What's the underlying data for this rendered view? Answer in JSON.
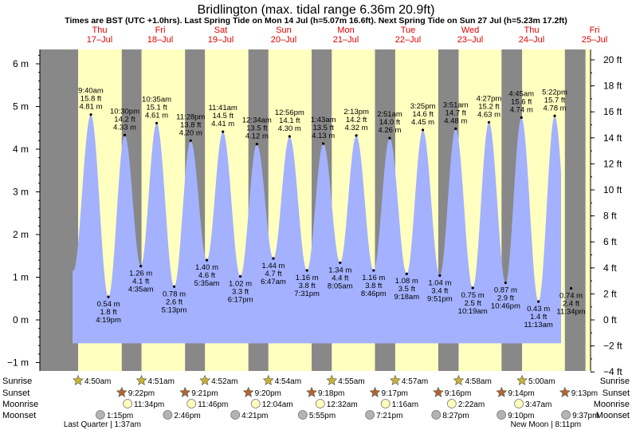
{
  "title": "Bridlington (max. tidal range 6.36m 20.9ft)",
  "subtitle": "Times are BST (UTC +1.0hrs). Last Spring Tide on Mon 14 Jul (h=5.07m 16.6ft). Next Spring Tide on Sun 27 Jul (h=5.23m 17.2ft)",
  "colors": {
    "tide_fill": "#a3b1ff",
    "day_bg": "#ffffc0",
    "night_bg": "#888888",
    "day_label": "#e00000",
    "sun_star": "#c8b432",
    "sunset_star": "#b4642d",
    "moonrise": "#ffffbe",
    "moonset": "#b4b4b4"
  },
  "chart_data": {
    "type": "area",
    "days": [
      {
        "dow": "Thu",
        "date": "17–Jul"
      },
      {
        "dow": "Fri",
        "date": "18–Jul"
      },
      {
        "dow": "Sat",
        "date": "19–Jul"
      },
      {
        "dow": "Sun",
        "date": "20–Jul"
      },
      {
        "dow": "Mon",
        "date": "21–Jul"
      },
      {
        "dow": "Tue",
        "date": "22–Jul"
      },
      {
        "dow": "Wed",
        "date": "23–Jul"
      },
      {
        "dow": "Thu",
        "date": "24–Jul"
      },
      {
        "dow": "Fri",
        "date": "25–Jul"
      }
    ],
    "y_left": {
      "unit": "m",
      "ticks": [
        -1,
        0,
        1,
        2,
        3,
        4,
        5,
        6
      ],
      "tick_labels": [
        "−1 m",
        "0 m",
        "1 m",
        "2 m",
        "3 m",
        "4 m",
        "5 m",
        "6 m"
      ]
    },
    "y_right": {
      "unit": "ft",
      "ticks": [
        -4,
        -2,
        0,
        2,
        4,
        6,
        8,
        10,
        12,
        14,
        16,
        18,
        20
      ],
      "tick_labels": [
        "−4 ft",
        "−2 ft",
        "0 ft",
        "2 ft",
        "4 ft",
        "6 ft",
        "8 ft",
        "10 ft",
        "12 ft",
        "14 ft",
        "16 ft",
        "18 ft",
        "20 ft"
      ]
    },
    "tides": [
      {
        "type": "high",
        "day": 0,
        "time": "9:40 am",
        "ft": "15.8 ft",
        "m": "4.81 m",
        "h": 4.81
      },
      {
        "type": "low",
        "day": 0,
        "time": "4:19 pm",
        "ft": "1.8 ft",
        "m": "0.54 m",
        "h": 0.54
      },
      {
        "type": "high",
        "day": 0,
        "time": "10:30 pm",
        "ft": "14.2 ft",
        "m": "4.33 m",
        "h": 4.33
      },
      {
        "type": "low",
        "day": 1,
        "time": "4:35 am",
        "ft": "4.1 ft",
        "m": "1.26 m",
        "h": 1.26
      },
      {
        "type": "high",
        "day": 1,
        "time": "10:35 am",
        "ft": "15.1 ft",
        "m": "4.61 m",
        "h": 4.61
      },
      {
        "type": "low",
        "day": 1,
        "time": "5:13 pm",
        "ft": "2.6 ft",
        "m": "0.78 m",
        "h": 0.78
      },
      {
        "type": "high",
        "day": 1,
        "time": "11:28 pm",
        "ft": "13.8 ft",
        "m": "4.20 m",
        "h": 4.2
      },
      {
        "type": "low",
        "day": 2,
        "time": "5:35 am",
        "ft": "4.6 ft",
        "m": "1.40 m",
        "h": 1.4
      },
      {
        "type": "high",
        "day": 2,
        "time": "11:41 am",
        "ft": "14.5 ft",
        "m": "4.41 m",
        "h": 4.41
      },
      {
        "type": "low",
        "day": 2,
        "time": "6:17 pm",
        "ft": "3.3 ft",
        "m": "1.02 m",
        "h": 1.02
      },
      {
        "type": "high",
        "day": 3,
        "time": "12:34 am",
        "ft": "13.5 ft",
        "m": "4.12 m",
        "h": 4.12
      },
      {
        "type": "low",
        "day": 3,
        "time": "6:47 am",
        "ft": "4.7 ft",
        "m": "1.44 m",
        "h": 1.44
      },
      {
        "type": "high",
        "day": 3,
        "time": "12:56 pm",
        "ft": "14.1 ft",
        "m": "4.30 m",
        "h": 4.3
      },
      {
        "type": "low",
        "day": 3,
        "time": "7:31 pm",
        "ft": "3.8 ft",
        "m": "1.16 m",
        "h": 1.16
      },
      {
        "type": "high",
        "day": 4,
        "time": "1:43 am",
        "ft": "13.5 ft",
        "m": "4.13 m",
        "h": 4.13
      },
      {
        "type": "low",
        "day": 4,
        "time": "8:05 am",
        "ft": "4.4 ft",
        "m": "1.34 m",
        "h": 1.34
      },
      {
        "type": "high",
        "day": 4,
        "time": "2:13 pm",
        "ft": "14.2 ft",
        "m": "4.32 m",
        "h": 4.32
      },
      {
        "type": "low",
        "day": 4,
        "time": "8:46 pm",
        "ft": "3.8 ft",
        "m": "1.16 m",
        "h": 1.16
      },
      {
        "type": "high",
        "day": 5,
        "time": "2:51 am",
        "ft": "14.0 ft",
        "m": "4.26 m",
        "h": 4.26
      },
      {
        "type": "low",
        "day": 5,
        "time": "9:18 am",
        "ft": "3.5 ft",
        "m": "1.08 m",
        "h": 1.08
      },
      {
        "type": "high",
        "day": 5,
        "time": "3:25 pm",
        "ft": "14.6 ft",
        "m": "4.45 m",
        "h": 4.45
      },
      {
        "type": "low",
        "day": 5,
        "time": "9:51 pm",
        "ft": "3.4 ft",
        "m": "1.04 m",
        "h": 1.04
      },
      {
        "type": "high",
        "day": 6,
        "time": "3:51 am",
        "ft": "14.7 ft",
        "m": "4.48 m",
        "h": 4.48
      },
      {
        "type": "low",
        "day": 6,
        "time": "10:19 am",
        "ft": "2.5 ft",
        "m": "0.75 m",
        "h": 0.75
      },
      {
        "type": "high",
        "day": 6,
        "time": "4:27 pm",
        "ft": "15.2 ft",
        "m": "4.63 m",
        "h": 4.63
      },
      {
        "type": "low",
        "day": 6,
        "time": "10:46 pm",
        "ft": "2.9 ft",
        "m": "0.87 m",
        "h": 0.87
      },
      {
        "type": "high",
        "day": 7,
        "time": "4:45 am",
        "ft": "15.6 ft",
        "m": "4.74 m",
        "h": 4.74
      },
      {
        "type": "low",
        "day": 7,
        "time": "11:13 am",
        "ft": "1.4 ft",
        "m": "0.43 m",
        "h": 0.43
      },
      {
        "type": "high",
        "day": 7,
        "time": "5:22 pm",
        "ft": "15.7 ft",
        "m": "4.78 m",
        "h": 4.78
      },
      {
        "type": "low",
        "day": 7,
        "time": "11:34 pm",
        "ft": "2.4 ft",
        "m": "0.74 m",
        "h": 0.74
      }
    ],
    "sun": [
      {
        "day": 0,
        "sunrise": "4:50am",
        "sunset": "9:22pm"
      },
      {
        "day": 1,
        "sunrise": "4:51am",
        "sunset": "9:21pm"
      },
      {
        "day": 2,
        "sunrise": "4:52am",
        "sunset": "9:20pm"
      },
      {
        "day": 3,
        "sunrise": "4:54am",
        "sunset": "9:18pm"
      },
      {
        "day": 4,
        "sunrise": "4:55am",
        "sunset": "9:17pm"
      },
      {
        "day": 5,
        "sunrise": "4:57am",
        "sunset": "9:16pm"
      },
      {
        "day": 6,
        "sunrise": "4:58am",
        "sunset": "9:14pm"
      },
      {
        "day": 7,
        "sunrise": "5:00am",
        "sunset": "9:13pm"
      }
    ],
    "moonrise": [
      {
        "day": 0,
        "time": "11:34pm"
      },
      {
        "day": 1,
        "time": "11:46pm"
      },
      {
        "day": 3,
        "time": "12:04am"
      },
      {
        "day": 4,
        "time": "12:32am"
      },
      {
        "day": 5,
        "time": "1:16am"
      },
      {
        "day": 6,
        "time": "2:22am"
      },
      {
        "day": 7,
        "time": "3:47am"
      }
    ],
    "moonset": [
      {
        "day": 0,
        "time": "1:15pm"
      },
      {
        "day": 1,
        "time": "2:46pm"
      },
      {
        "day": 2,
        "time": "4:21pm"
      },
      {
        "day": 3,
        "time": "5:55pm"
      },
      {
        "day": 4,
        "time": "7:21pm"
      },
      {
        "day": 5,
        "time": "8:27pm"
      },
      {
        "day": 6,
        "time": "9:10pm"
      },
      {
        "day": 7,
        "time": "9:37pm"
      }
    ],
    "row_labels": [
      "Sunrise",
      "Sunset",
      "Moonrise",
      "Moonset"
    ],
    "moon_phases": [
      {
        "day": 0,
        "label": "Last Quarter | 1:37am"
      },
      {
        "day": 7,
        "label": "New Moon | 8:11pm"
      }
    ]
  }
}
